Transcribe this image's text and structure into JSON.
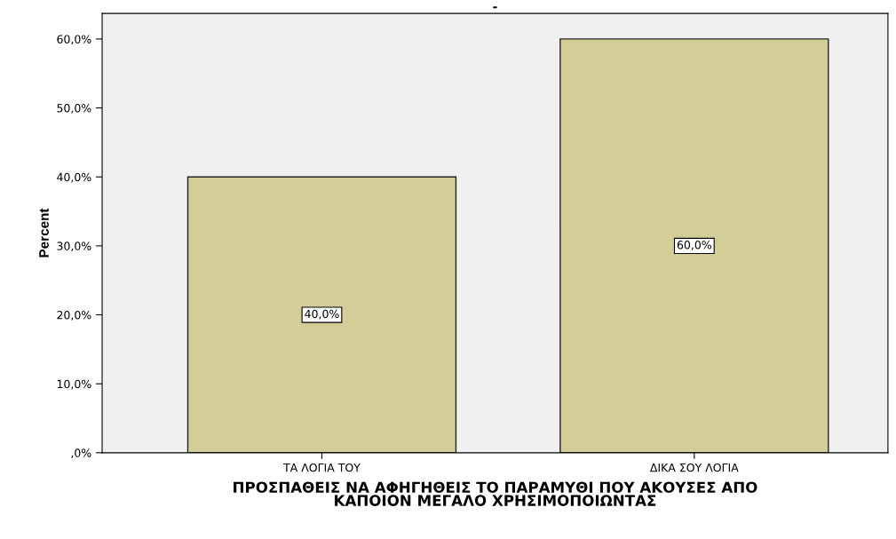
{
  "chart_data": {
    "type": "bar",
    "title": "-",
    "xlabel": "ΠΡΟΣΠΑΘΕΙΣ ΝΑ ΑΦΗΓΗΘΕΙΣ ΤΟ ΠΑΡΑΜΥΘΙ ΠΟΥ ΑΚΟΥΣΕΣ ΑΠΟ\nΚΑΠΟΙΟΝ ΜΕΓΑΛΟ ΧΡΗΣΙΜΟΠΟΙΩΝΤΑΣ",
    "ylabel": "Percent",
    "categories": [
      "ΤΑ ΛΟΓΙΑ ΤΟΥ",
      "ΔΙΚΑ ΣΟΥ ΛΟΓΙΑ"
    ],
    "values": [
      40,
      60
    ],
    "value_labels": [
      "40,0%",
      "60,0%"
    ],
    "color": "#d3cd98",
    "ylim": [
      0,
      63.7
    ],
    "yticks": [
      {
        "value": 0,
        "label": ",0%"
      },
      {
        "value": 10,
        "label": "10,0%"
      },
      {
        "value": 20,
        "label": "20,0%"
      },
      {
        "value": 30,
        "label": "30,0%"
      },
      {
        "value": 40,
        "label": "40,0%"
      },
      {
        "value": 50,
        "label": "50,0%"
      },
      {
        "value": 60,
        "label": "60,0%"
      }
    ],
    "grid": false,
    "legend": false
  }
}
